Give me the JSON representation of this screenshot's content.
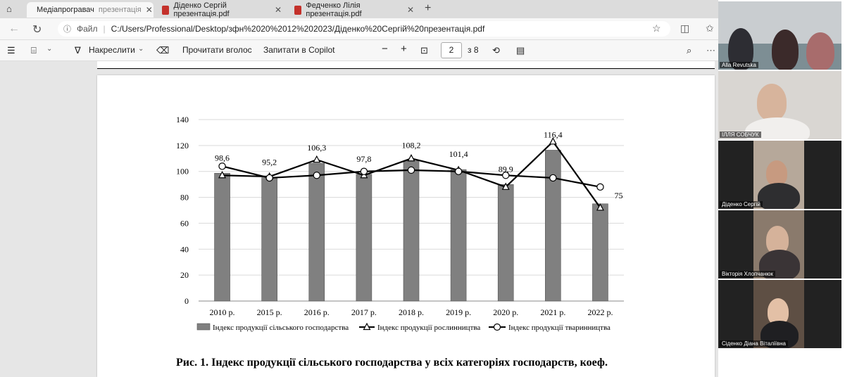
{
  "tabs": [
    {
      "label": "Медіапрогравач",
      "extra": "презентація",
      "icon": "media-player-icon"
    },
    {
      "label": "Діденко Сергій презентація.pdf",
      "icon": "pdf-icon"
    },
    {
      "label": "Федченко Лілія презентація.pdf",
      "icon": "pdf-icon"
    }
  ],
  "address": {
    "scheme": "Файл",
    "url": "C:/Users/Professional/Desktop/зфн%2020%2012%202023/Діденко%20Сергій%20презентація.pdf"
  },
  "toolbar": {
    "draw": "Накреслити",
    "read_aloud": "Прочитати вголос",
    "ask_copilot": "Запитати в Copilot",
    "page_current": "2",
    "page_total": "з 8"
  },
  "caption": "Рис. 1. Індекс продукції сільського господарства у всіх категоріях господарств, коеф.",
  "chart_data": {
    "type": "bar",
    "categories": [
      "2010 р.",
      "2015 р.",
      "2016 р.",
      "2017 р.",
      "2018 р.",
      "2019 р.",
      "2020 р.",
      "2021 р.",
      "2022 р."
    ],
    "ylim": [
      0,
      140
    ],
    "yticks": [
      "0",
      "20",
      "40",
      "60",
      "80",
      "100",
      "120",
      "140"
    ],
    "grid": true,
    "legend_position": "bottom",
    "series": [
      {
        "name": "Індекс продукції сільського господарства",
        "kind": "bar",
        "values": [
          98.6,
          95.2,
          106.3,
          97.8,
          108.2,
          101.4,
          89.9,
          116.4,
          75
        ],
        "labels": [
          "98,6",
          "95,2",
          "106,3",
          "97,8",
          "108,2",
          "101,4",
          "89,9",
          "116,4",
          "75"
        ]
      },
      {
        "name": "Індекс продукції рослинництва",
        "kind": "line",
        "marker": "triangle",
        "values": [
          97,
          96,
          109,
          97,
          110,
          101,
          88,
          123,
          72
        ]
      },
      {
        "name": "Індекс продукції тваринництва",
        "kind": "line",
        "marker": "circle",
        "values": [
          104,
          95,
          97,
          100,
          101,
          100,
          97,
          95,
          88
        ]
      }
    ],
    "colors": {
      "bar": "#808080",
      "line": "#000000"
    }
  },
  "participants": [
    {
      "name": "Alla Revutska"
    },
    {
      "name": "ІЛЛЯ СОБЧУК"
    },
    {
      "name": "Діденко Сергій"
    },
    {
      "name": "Вікторія Хлопчанюк"
    },
    {
      "name": "Сіденко Діана Віталіївна"
    }
  ]
}
